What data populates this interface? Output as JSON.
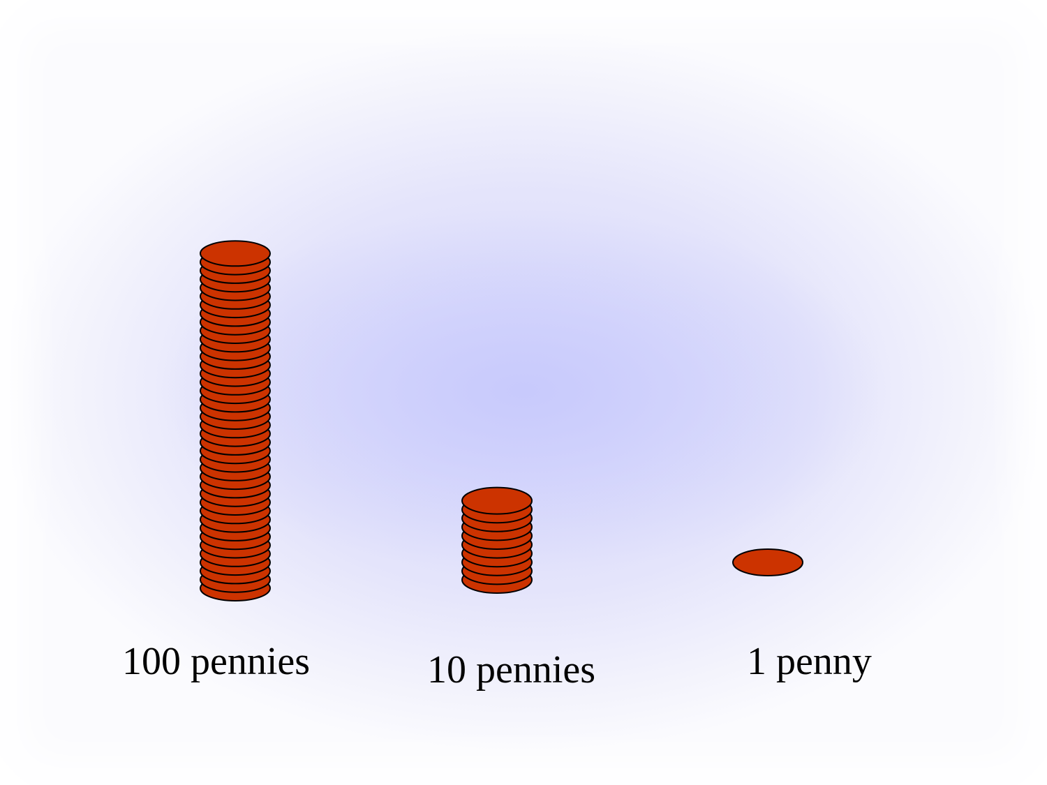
{
  "stacks": [
    {
      "label": "100 pennies",
      "count": 100,
      "coins_drawn": 40
    },
    {
      "label": "10 pennies",
      "count": 10,
      "coins_drawn": 10
    },
    {
      "label": "1 penny",
      "count": 1,
      "coins_drawn": 1
    }
  ],
  "colors": {
    "coin_fill": "#cc3300",
    "coin_stroke": "#000000",
    "background_center": "#c8cafc",
    "background_edge": "#fbfbfe"
  }
}
